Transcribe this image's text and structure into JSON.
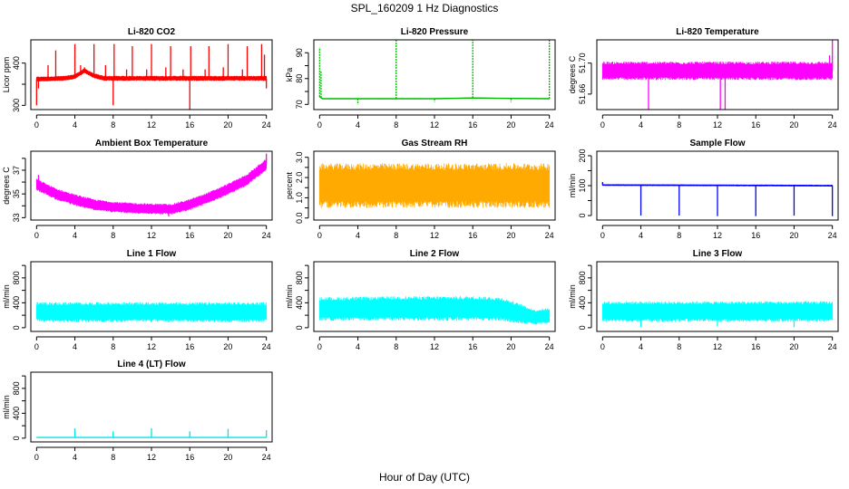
{
  "title": "SPL_160209  1 Hz Diagnostics",
  "xlabel": "Hour of Day (UTC)",
  "chart_data": [
    {
      "type": "line",
      "title": "Li-820 CO2",
      "ylabel": "Licor ppm",
      "ylim": [
        290,
        455
      ],
      "yticks": [
        300,
        350,
        400
      ],
      "ytick_labels": [
        "300",
        "",
        "400"
      ],
      "xlim": [
        -0.6,
        24.6
      ],
      "xticks": [
        0,
        4,
        8,
        12,
        16,
        20,
        24
      ],
      "color": "#ff0000",
      "series": [
        {
          "base": [
            [
              0,
              362
            ],
            [
              3,
              364
            ],
            [
              4,
              368
            ],
            [
              5,
              382
            ],
            [
              6,
              370
            ],
            [
              7,
              364
            ],
            [
              10,
              364
            ],
            [
              14,
              364
            ],
            [
              18,
              364
            ],
            [
              22,
              364
            ],
            [
              24,
              364
            ]
          ],
          "band": [
            [
              0,
              6
            ],
            [
              24,
              6
            ]
          ],
          "spikes": [
            [
              0,
              300
            ],
            [
              0.2,
              340
            ],
            [
              1.2,
              395
            ],
            [
              2,
              430
            ],
            [
              4,
              445
            ],
            [
              4.6,
              395
            ],
            [
              5,
              390
            ],
            [
              6,
              445
            ],
            [
              7.2,
              395
            ],
            [
              8,
              300
            ],
            [
              8.1,
              445
            ],
            [
              9.4,
              385
            ],
            [
              10,
              440
            ],
            [
              11.5,
              385
            ],
            [
              12,
              445
            ],
            [
              13.5,
              390
            ],
            [
              14,
              440
            ],
            [
              15.3,
              385
            ],
            [
              16,
              290
            ],
            [
              16.1,
              440
            ],
            [
              17.6,
              385
            ],
            [
              18,
              440
            ],
            [
              19.5,
              390
            ],
            [
              20,
              445
            ],
            [
              21.5,
              385
            ],
            [
              22,
              440
            ],
            [
              23.5,
              445
            ],
            [
              23.8,
              420
            ],
            [
              24,
              340
            ]
          ]
        }
      ]
    },
    {
      "type": "line",
      "title": "Li-820 Pressure",
      "ylabel": "kPa",
      "ylim": [
        68,
        95
      ],
      "yticks": [
        70,
        75,
        80,
        85,
        90
      ],
      "ytick_labels": [
        "70",
        "",
        "80",
        "",
        "90"
      ],
      "xlim": [
        -0.6,
        24.6
      ],
      "xticks": [
        0,
        4,
        8,
        12,
        16,
        20,
        24
      ],
      "color": "#00bb00",
      "series": [
        {
          "base": [
            [
              0,
              73
            ],
            [
              0.3,
              72.2
            ],
            [
              8,
              72.2
            ],
            [
              12,
              72.2
            ],
            [
              16,
              72.5
            ],
            [
              20,
              72.3
            ],
            [
              24,
              72.2
            ]
          ],
          "band": [
            [
              0,
              0.2
            ],
            [
              24,
              0.2
            ]
          ],
          "spikes": [
            [
              0,
              92
            ],
            [
              0.15,
              83
            ],
            [
              4,
              70
            ],
            [
              8,
              95
            ],
            [
              12,
              71
            ],
            [
              16,
              95
            ],
            [
              20,
              71
            ],
            [
              24,
              95
            ]
          ]
        }
      ]
    },
    {
      "type": "line",
      "title": "Li-820 Temperature",
      "ylabel": "degrees C",
      "ylim": [
        51.64,
        51.73
      ],
      "yticks": [
        51.66,
        51.7
      ],
      "ytick_labels": [
        "51.66",
        "51.70"
      ],
      "xlim": [
        -0.6,
        24.6
      ],
      "xticks": [
        0,
        4,
        8,
        12,
        16,
        20,
        24
      ],
      "color": "#ff00ff",
      "series": [
        {
          "base": [
            [
              0,
              51.69
            ],
            [
              24,
              51.69
            ]
          ],
          "band": [
            [
              0,
              0.012
            ],
            [
              24,
              0.012
            ]
          ],
          "spikes": [
            [
              4.8,
              51.64
            ],
            [
              12.3,
              51.64
            ],
            [
              12.8,
              51.64
            ],
            [
              24,
              51.73
            ],
            [
              23.7,
              51.71
            ]
          ]
        }
      ]
    },
    {
      "type": "line",
      "title": "Ambient Box Temperature",
      "ylabel": "degrees C",
      "ylim": [
        32.8,
        38.6
      ],
      "yticks": [
        33,
        34,
        35,
        36,
        37,
        38
      ],
      "ytick_labels": [
        "33",
        "",
        "35",
        "",
        "37",
        ""
      ],
      "xlim": [
        -0.6,
        24.6
      ],
      "xticks": [
        0,
        4,
        8,
        12,
        16,
        20,
        24
      ],
      "color": "#ff00ff",
      "series": [
        {
          "base": [
            [
              0,
              35.8
            ],
            [
              2,
              35.0
            ],
            [
              4,
              34.5
            ],
            [
              6,
              34.1
            ],
            [
              8,
              33.9
            ],
            [
              10,
              33.8
            ],
            [
              12,
              33.75
            ],
            [
              14,
              33.7
            ],
            [
              16,
              34.1
            ],
            [
              18,
              34.7
            ],
            [
              20,
              35.4
            ],
            [
              22,
              36.2
            ],
            [
              24,
              37.5
            ]
          ],
          "band": [
            [
              0,
              0.5
            ],
            [
              12,
              0.45
            ],
            [
              24,
              0.5
            ]
          ],
          "spikes": [
            [
              0.2,
              36.6
            ],
            [
              13.8,
              33.1
            ],
            [
              24,
              38.4
            ]
          ]
        }
      ]
    },
    {
      "type": "line",
      "title": "Gas Stream RH",
      "ylabel": "percent",
      "ylim": [
        -0.1,
        3.3
      ],
      "yticks": [
        0,
        0.5,
        1,
        1.5,
        2,
        2.5,
        3
      ],
      "ytick_labels": [
        "0.0",
        "",
        "1.0",
        "",
        "2.0",
        "",
        "3.0"
      ],
      "xlim": [
        -0.6,
        24.6
      ],
      "xticks": [
        0,
        4,
        8,
        12,
        16,
        20,
        24
      ],
      "color": "#ffaa00",
      "series": [
        {
          "base": [
            [
              0,
              1.6
            ],
            [
              24,
              1.6
            ]
          ],
          "band": [
            [
              0,
              1.1
            ],
            [
              24,
              1.1
            ]
          ],
          "spikes": []
        }
      ]
    },
    {
      "type": "line",
      "title": "Sample Flow",
      "ylabel": "ml/min",
      "ylim": [
        -15,
        215
      ],
      "yticks": [
        0,
        50,
        100,
        150,
        200
      ],
      "ytick_labels": [
        "0",
        "",
        "100",
        "",
        "200"
      ],
      "xlim": [
        -0.6,
        24.6
      ],
      "xticks": [
        0,
        4,
        8,
        12,
        16,
        20,
        24
      ],
      "color": "#0000ff",
      "series": [
        {
          "base": [
            [
              0,
              102
            ],
            [
              24,
              100
            ]
          ],
          "band": [
            [
              0,
              3
            ],
            [
              24,
              3
            ]
          ],
          "spikes": [
            [
              0,
              112
            ],
            [
              4,
              0
            ],
            [
              8,
              0
            ],
            [
              12,
              -2
            ],
            [
              16,
              -2
            ],
            [
              20,
              0
            ],
            [
              24,
              -2
            ]
          ]
        }
      ]
    },
    {
      "type": "line",
      "title": "Line 1 Flow",
      "ylabel": "ml/min",
      "ylim": [
        -60,
        1060
      ],
      "yticks": [
        0,
        200,
        400,
        600,
        800,
        1000
      ],
      "ytick_labels": [
        "0",
        "",
        "400",
        "",
        "800",
        ""
      ],
      "xlim": [
        -0.6,
        24.6
      ],
      "xticks": [
        0,
        4,
        8,
        12,
        16,
        20,
        24
      ],
      "color": "#00ffff",
      "series": [
        {
          "base": [
            [
              0,
              250
            ],
            [
              24,
              250
            ]
          ],
          "band": [
            [
              0,
              160
            ],
            [
              24,
              160
            ]
          ],
          "spikes": []
        }
      ]
    },
    {
      "type": "line",
      "title": "Line 2 Flow",
      "ylabel": "ml/min",
      "ylim": [
        -60,
        1060
      ],
      "yticks": [
        0,
        200,
        400,
        600,
        800,
        1000
      ],
      "ytick_labels": [
        "0",
        "",
        "400",
        "",
        "800",
        ""
      ],
      "xlim": [
        -0.6,
        24.6
      ],
      "xticks": [
        0,
        4,
        8,
        12,
        16,
        20,
        24
      ],
      "color": "#00ffff",
      "series": [
        {
          "base": [
            [
              0,
              300
            ],
            [
              8,
              310
            ],
            [
              16,
              310
            ],
            [
              19,
              300
            ],
            [
              21,
              220
            ],
            [
              22.5,
              170
            ],
            [
              24,
              190
            ]
          ],
          "band": [
            [
              0,
              190
            ],
            [
              16,
              200
            ],
            [
              19,
              190
            ],
            [
              21,
              160
            ],
            [
              22.5,
              120
            ],
            [
              24,
              130
            ]
          ],
          "spikes": []
        }
      ]
    },
    {
      "type": "line",
      "title": "Line 3 Flow",
      "ylabel": "ml/min",
      "ylim": [
        -60,
        1060
      ],
      "yticks": [
        0,
        200,
        400,
        600,
        800,
        1000
      ],
      "ytick_labels": [
        "0",
        "",
        "400",
        "",
        "800",
        ""
      ],
      "xlim": [
        -0.6,
        24.6
      ],
      "xticks": [
        0,
        4,
        8,
        12,
        16,
        20,
        24
      ],
      "color": "#00ffff",
      "series": [
        {
          "base": [
            [
              0,
              260
            ],
            [
              24,
              260
            ]
          ],
          "band": [
            [
              0,
              165
            ],
            [
              24,
              165
            ]
          ],
          "spikes": [
            [
              4,
              10
            ],
            [
              12,
              20
            ],
            [
              20,
              10
            ]
          ]
        }
      ]
    },
    {
      "type": "line",
      "title": "Line 4 (LT) Flow",
      "ylabel": "ml/min",
      "ylim": [
        -60,
        1060
      ],
      "yticks": [
        0,
        200,
        400,
        600,
        800,
        1000
      ],
      "ytick_labels": [
        "0",
        "",
        "400",
        "",
        "800",
        ""
      ],
      "xlim": [
        -0.6,
        24.6
      ],
      "xticks": [
        0,
        4,
        8,
        12,
        16,
        20,
        24
      ],
      "color": "#00e5e5",
      "series": [
        {
          "base": [
            [
              0,
              12
            ],
            [
              24,
              12
            ]
          ],
          "band": [
            [
              0,
              4
            ],
            [
              24,
              4
            ]
          ],
          "spikes": [
            [
              4,
              160
            ],
            [
              8,
              110
            ],
            [
              12,
              160
            ],
            [
              16,
              110
            ],
            [
              20,
              150
            ],
            [
              24,
              130
            ]
          ]
        }
      ]
    }
  ]
}
